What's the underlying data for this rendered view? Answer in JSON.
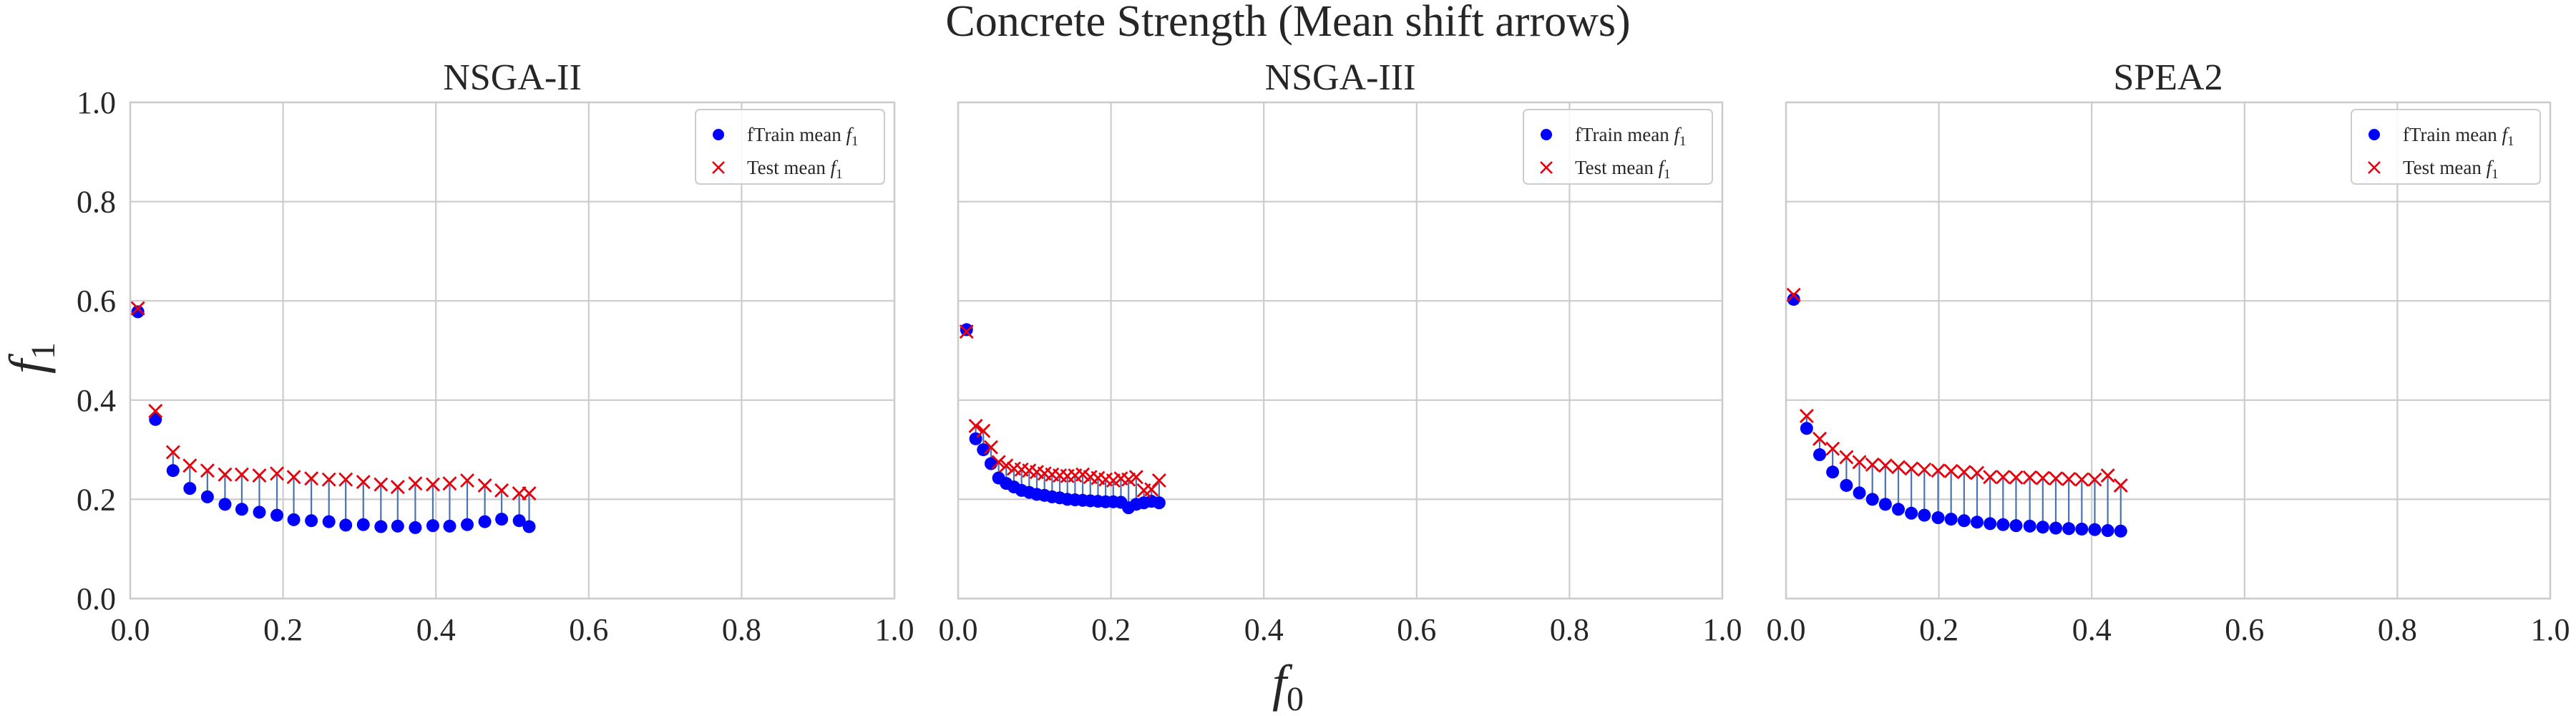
{
  "figure": {
    "title": "Concrete Strength (Mean shift arrows)",
    "xlabel_main": "f",
    "xlabel_sub": "0",
    "ylabel_main": "f",
    "ylabel_sub": "1"
  },
  "chart_data": [
    {
      "type": "scatter",
      "title": "NSGA-II",
      "xlim": [
        0,
        1
      ],
      "ylim": [
        0,
        1
      ],
      "xticks": [
        "0.0",
        "0.2",
        "0.4",
        "0.6",
        "0.8",
        "1.0"
      ],
      "yticks": [
        "0.0",
        "0.2",
        "0.4",
        "0.6",
        "0.8",
        "1.0"
      ],
      "grid": true,
      "legend_position": "top-right",
      "series": [
        {
          "name": "fTrain mean",
          "name_sub": "f",
          "name_subscript": "1",
          "marker": "circle",
          "color": "#0000ff",
          "x": [
            0.01,
            0.033,
            0.056,
            0.078,
            0.101,
            0.124,
            0.146,
            0.169,
            0.192,
            0.214,
            0.237,
            0.26,
            0.282,
            0.305,
            0.328,
            0.35,
            0.373,
            0.396,
            0.418,
            0.441,
            0.464,
            0.486,
            0.509,
            0.522
          ],
          "y": [
            0.578,
            0.361,
            0.258,
            0.222,
            0.205,
            0.19,
            0.18,
            0.174,
            0.168,
            0.159,
            0.157,
            0.155,
            0.148,
            0.149,
            0.145,
            0.146,
            0.143,
            0.147,
            0.146,
            0.149,
            0.155,
            0.16,
            0.157,
            0.145
          ]
        },
        {
          "name": "Test mean",
          "name_sub": "f",
          "name_subscript": "1",
          "marker": "x",
          "color": "#e8000b",
          "x": [
            0.01,
            0.033,
            0.056,
            0.078,
            0.101,
            0.124,
            0.146,
            0.169,
            0.192,
            0.214,
            0.237,
            0.26,
            0.282,
            0.305,
            0.328,
            0.35,
            0.373,
            0.396,
            0.418,
            0.441,
            0.464,
            0.486,
            0.509,
            0.522
          ],
          "y": [
            0.585,
            0.378,
            0.295,
            0.268,
            0.258,
            0.25,
            0.25,
            0.248,
            0.252,
            0.245,
            0.242,
            0.24,
            0.24,
            0.235,
            0.23,
            0.225,
            0.232,
            0.23,
            0.232,
            0.238,
            0.228,
            0.218,
            0.212,
            0.212
          ]
        }
      ]
    },
    {
      "type": "scatter",
      "title": "NSGA-III",
      "xlim": [
        0,
        1
      ],
      "ylim": [
        0,
        1
      ],
      "xticks": [
        "0.0",
        "0.2",
        "0.4",
        "0.6",
        "0.8",
        "1.0"
      ],
      "yticks": [],
      "grid": true,
      "legend_position": "top-right",
      "series": [
        {
          "name": "fTrain mean",
          "name_sub": "f",
          "name_subscript": "1",
          "marker": "circle",
          "color": "#0000ff",
          "x": [
            0.011,
            0.023,
            0.033,
            0.043,
            0.053,
            0.063,
            0.073,
            0.083,
            0.093,
            0.103,
            0.113,
            0.123,
            0.133,
            0.143,
            0.153,
            0.163,
            0.173,
            0.183,
            0.193,
            0.203,
            0.213,
            0.223,
            0.233,
            0.243,
            0.253,
            0.263
          ],
          "y": [
            0.542,
            0.322,
            0.3,
            0.272,
            0.243,
            0.232,
            0.225,
            0.218,
            0.214,
            0.21,
            0.208,
            0.205,
            0.203,
            0.2,
            0.199,
            0.198,
            0.197,
            0.196,
            0.195,
            0.195,
            0.194,
            0.183,
            0.19,
            0.193,
            0.196,
            0.193
          ]
        },
        {
          "name": "Test mean",
          "name_sub": "f",
          "name_subscript": "1",
          "marker": "x",
          "color": "#e8000b",
          "x": [
            0.011,
            0.023,
            0.033,
            0.043,
            0.053,
            0.063,
            0.073,
            0.083,
            0.093,
            0.103,
            0.113,
            0.123,
            0.133,
            0.143,
            0.153,
            0.163,
            0.173,
            0.183,
            0.193,
            0.203,
            0.213,
            0.223,
            0.233,
            0.243,
            0.253,
            0.263
          ],
          "y": [
            0.538,
            0.348,
            0.338,
            0.305,
            0.275,
            0.268,
            0.262,
            0.26,
            0.258,
            0.255,
            0.252,
            0.25,
            0.248,
            0.247,
            0.248,
            0.25,
            0.245,
            0.243,
            0.24,
            0.238,
            0.242,
            0.24,
            0.245,
            0.218,
            0.22,
            0.238
          ]
        }
      ]
    },
    {
      "type": "scatter",
      "title": "SPEA2",
      "xlim": [
        0,
        1
      ],
      "ylim": [
        0,
        1
      ],
      "xticks": [
        "0.0",
        "0.2",
        "0.4",
        "0.6",
        "0.8",
        "1.0"
      ],
      "yticks": [],
      "grid": true,
      "legend_position": "top-right",
      "series": [
        {
          "name": "fTrain mean",
          "name_sub": "f",
          "name_subscript": "1",
          "marker": "circle",
          "color": "#0000ff",
          "x": [
            0.01,
            0.027,
            0.044,
            0.061,
            0.079,
            0.096,
            0.113,
            0.13,
            0.147,
            0.164,
            0.181,
            0.199,
            0.216,
            0.233,
            0.25,
            0.267,
            0.284,
            0.301,
            0.319,
            0.336,
            0.353,
            0.37,
            0.387,
            0.404,
            0.421,
            0.438
          ],
          "y": [
            0.603,
            0.343,
            0.29,
            0.255,
            0.228,
            0.213,
            0.2,
            0.19,
            0.18,
            0.172,
            0.168,
            0.163,
            0.16,
            0.157,
            0.154,
            0.151,
            0.149,
            0.147,
            0.146,
            0.144,
            0.142,
            0.141,
            0.14,
            0.139,
            0.137,
            0.136
          ]
        },
        {
          "name": "Test mean",
          "name_sub": "f",
          "name_subscript": "1",
          "marker": "x",
          "color": "#e8000b",
          "x": [
            0.01,
            0.027,
            0.044,
            0.061,
            0.079,
            0.096,
            0.113,
            0.13,
            0.147,
            0.164,
            0.181,
            0.199,
            0.216,
            0.233,
            0.25,
            0.267,
            0.284,
            0.301,
            0.319,
            0.336,
            0.353,
            0.37,
            0.387,
            0.404,
            0.421,
            0.438
          ],
          "y": [
            0.612,
            0.368,
            0.322,
            0.302,
            0.285,
            0.275,
            0.27,
            0.268,
            0.265,
            0.262,
            0.26,
            0.258,
            0.257,
            0.255,
            0.253,
            0.245,
            0.245,
            0.244,
            0.244,
            0.243,
            0.242,
            0.241,
            0.24,
            0.24,
            0.248,
            0.228
          ]
        }
      ]
    }
  ]
}
